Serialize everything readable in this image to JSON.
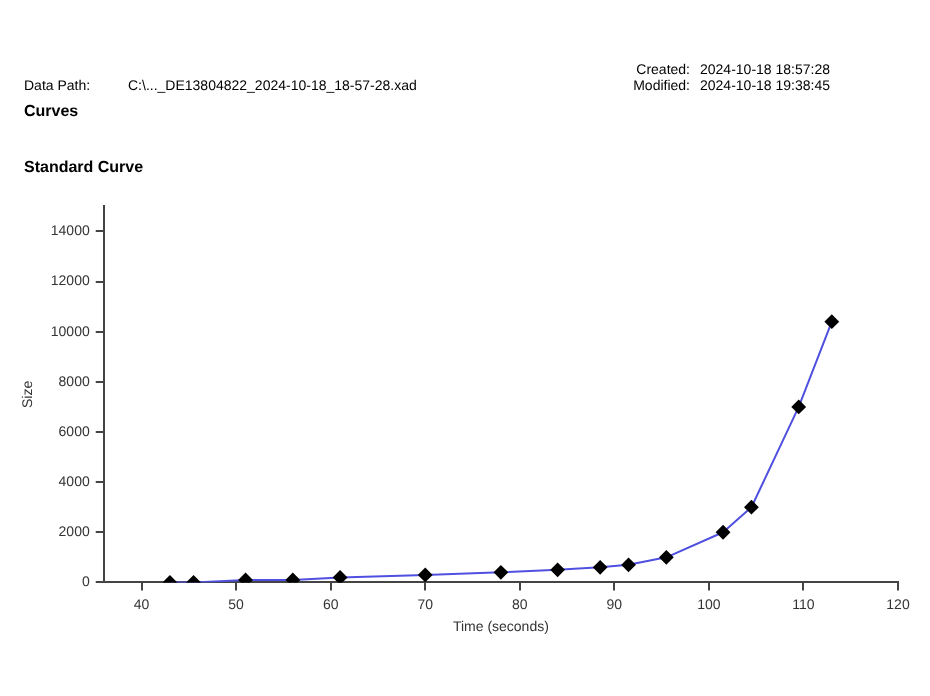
{
  "chart_data": {
    "type": "line",
    "title": "Standard Curve",
    "xlabel": "Time (seconds)",
    "ylabel": "Size",
    "annotations": [
      "Data Path:",
      "C:\\..._DE13804822_2024-10-18_18-57-28.xad",
      "Created:",
      "2024-10-18 18:57:28",
      "Modified:",
      "2024-10-18 19:38:45",
      "Curves"
    ],
    "x": [
      43,
      45.5,
      51,
      56,
      61,
      70,
      78,
      84,
      88.5,
      91.5,
      95.5,
      101.5,
      104.5,
      109.5,
      113
    ],
    "series": [
      {
        "color": "#5050e0",
        "values": [
          0,
          0,
          100,
          100,
          200,
          300,
          400,
          500,
          600,
          700,
          1000,
          2000,
          3000,
          7000,
          10400
        ]
      }
    ],
    "xlim": [
      36,
      120
    ],
    "xticks": [
      40,
      50,
      60,
      70,
      80,
      90,
      100,
      110,
      120
    ],
    "ylim": [
      0,
      15000
    ],
    "yticks": [
      0,
      2000,
      4000,
      6000,
      8000,
      10000,
      12000,
      14000
    ],
    "marker": "diamond",
    "line_style": "solid",
    "grid": false,
    "legend": false
  }
}
